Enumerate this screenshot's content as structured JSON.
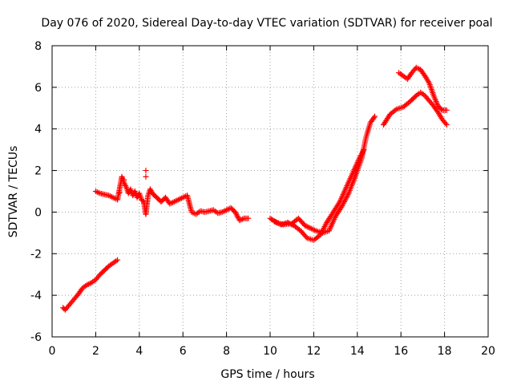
{
  "chart_data": {
    "type": "scatter",
    "title": "Day 076 of 2020, Sidereal Day-to-day VTEC variation (SDTVAR) for receiver poal",
    "xlabel": "GPS time / hours",
    "ylabel": "SDTVAR / TECUs",
    "xlim": [
      0,
      20
    ],
    "ylim": [
      -6,
      8
    ],
    "xticks": [
      0,
      2,
      4,
      6,
      8,
      10,
      12,
      14,
      16,
      18,
      20
    ],
    "yticks": [
      -6,
      -4,
      -2,
      0,
      2,
      4,
      6,
      8
    ],
    "xtick_labels": [
      "0",
      "2",
      "4",
      "6",
      "8",
      "10",
      "12",
      "14",
      "16",
      "18",
      "20"
    ],
    "ytick_labels": [
      "-6",
      "-4",
      "-2",
      "0",
      "2",
      "4",
      "6",
      "8"
    ],
    "grid": true,
    "marker": "+",
    "marker_color": "#ff0000",
    "series": [
      {
        "name": "segment-early",
        "x": [
          0.5,
          0.6,
          0.8,
          1.0,
          1.2,
          1.4,
          1.6,
          1.8,
          2.0,
          2.2,
          2.4,
          2.6,
          2.8,
          3.0
        ],
        "y": [
          -4.6,
          -4.7,
          -4.45,
          -4.2,
          -3.95,
          -3.65,
          -3.5,
          -3.4,
          -3.25,
          -3.0,
          -2.8,
          -2.6,
          -2.45,
          -2.3
        ]
      },
      {
        "name": "segment-morning",
        "x": [
          2.0,
          2.2,
          2.4,
          2.6,
          2.8,
          3.0,
          3.2,
          3.3,
          3.4,
          3.5,
          3.6,
          3.7,
          3.8,
          3.9,
          4.0,
          4.1,
          4.2,
          4.3,
          4.4,
          4.5,
          4.6,
          4.8,
          5.0,
          5.2,
          5.4,
          5.6,
          5.8,
          6.0,
          6.2,
          6.4,
          6.6,
          6.8,
          7.0,
          7.2,
          7.4,
          7.6,
          7.8,
          8.0,
          8.2,
          8.4,
          8.6,
          8.8,
          9.0
        ],
        "y": [
          1.0,
          0.9,
          0.85,
          0.8,
          0.7,
          0.6,
          1.7,
          1.4,
          1.2,
          0.9,
          1.1,
          0.8,
          1.0,
          0.7,
          0.9,
          0.6,
          0.5,
          -0.1,
          0.8,
          1.1,
          0.9,
          0.7,
          0.5,
          0.7,
          0.4,
          0.5,
          0.6,
          0.7,
          0.8,
          0.0,
          -0.1,
          0.05,
          0.0,
          0.05,
          0.1,
          -0.05,
          0.0,
          0.1,
          0.2,
          0.0,
          -0.4,
          -0.3,
          -0.3
        ]
      },
      {
        "name": "outliers",
        "x": [
          3.1,
          3.3,
          4.3,
          4.3,
          4.3
        ],
        "y": [
          0.95,
          1.55,
          2.0,
          1.7,
          -0.1
        ]
      },
      {
        "name": "segment-evening-lower",
        "x": [
          10.0,
          10.3,
          10.6,
          11.0,
          11.3,
          11.6,
          11.9,
          12.1,
          12.4,
          12.7,
          13.0,
          13.3,
          13.6,
          13.9,
          14.2,
          14.4,
          14.6,
          14.8
        ],
        "y": [
          -0.3,
          -0.5,
          -0.6,
          -0.55,
          -0.3,
          -0.65,
          -0.8,
          -0.9,
          -1.0,
          -0.9,
          -0.2,
          0.3,
          0.9,
          1.7,
          2.6,
          3.6,
          4.3,
          4.6
        ]
      },
      {
        "name": "segment-evening-upper",
        "x": [
          10.2,
          10.5,
          10.8,
          11.1,
          11.4,
          11.7,
          12.0,
          12.3,
          12.6,
          12.9,
          13.2,
          13.5,
          13.8,
          14.1,
          14.3
        ],
        "y": [
          -0.45,
          -0.6,
          -0.5,
          -0.65,
          -0.9,
          -1.25,
          -1.35,
          -1.1,
          -0.5,
          0.0,
          0.5,
          1.2,
          1.9,
          2.6,
          3.0
        ]
      },
      {
        "name": "segment-night-lower",
        "x": [
          15.2,
          15.5,
          15.8,
          16.1,
          16.4,
          16.7,
          16.9,
          17.1,
          17.3,
          17.5,
          17.7,
          17.9,
          18.1
        ],
        "y": [
          4.2,
          4.7,
          4.95,
          5.05,
          5.3,
          5.6,
          5.75,
          5.6,
          5.35,
          5.1,
          4.8,
          4.45,
          4.2
        ]
      },
      {
        "name": "segment-night-upper",
        "x": [
          15.9,
          16.1,
          16.3,
          16.5,
          16.7,
          16.9,
          17.1,
          17.3,
          17.5,
          17.7,
          17.9,
          18.1
        ],
        "y": [
          6.7,
          6.55,
          6.4,
          6.7,
          6.95,
          6.85,
          6.55,
          6.2,
          5.6,
          5.1,
          4.9,
          4.9
        ]
      }
    ]
  }
}
